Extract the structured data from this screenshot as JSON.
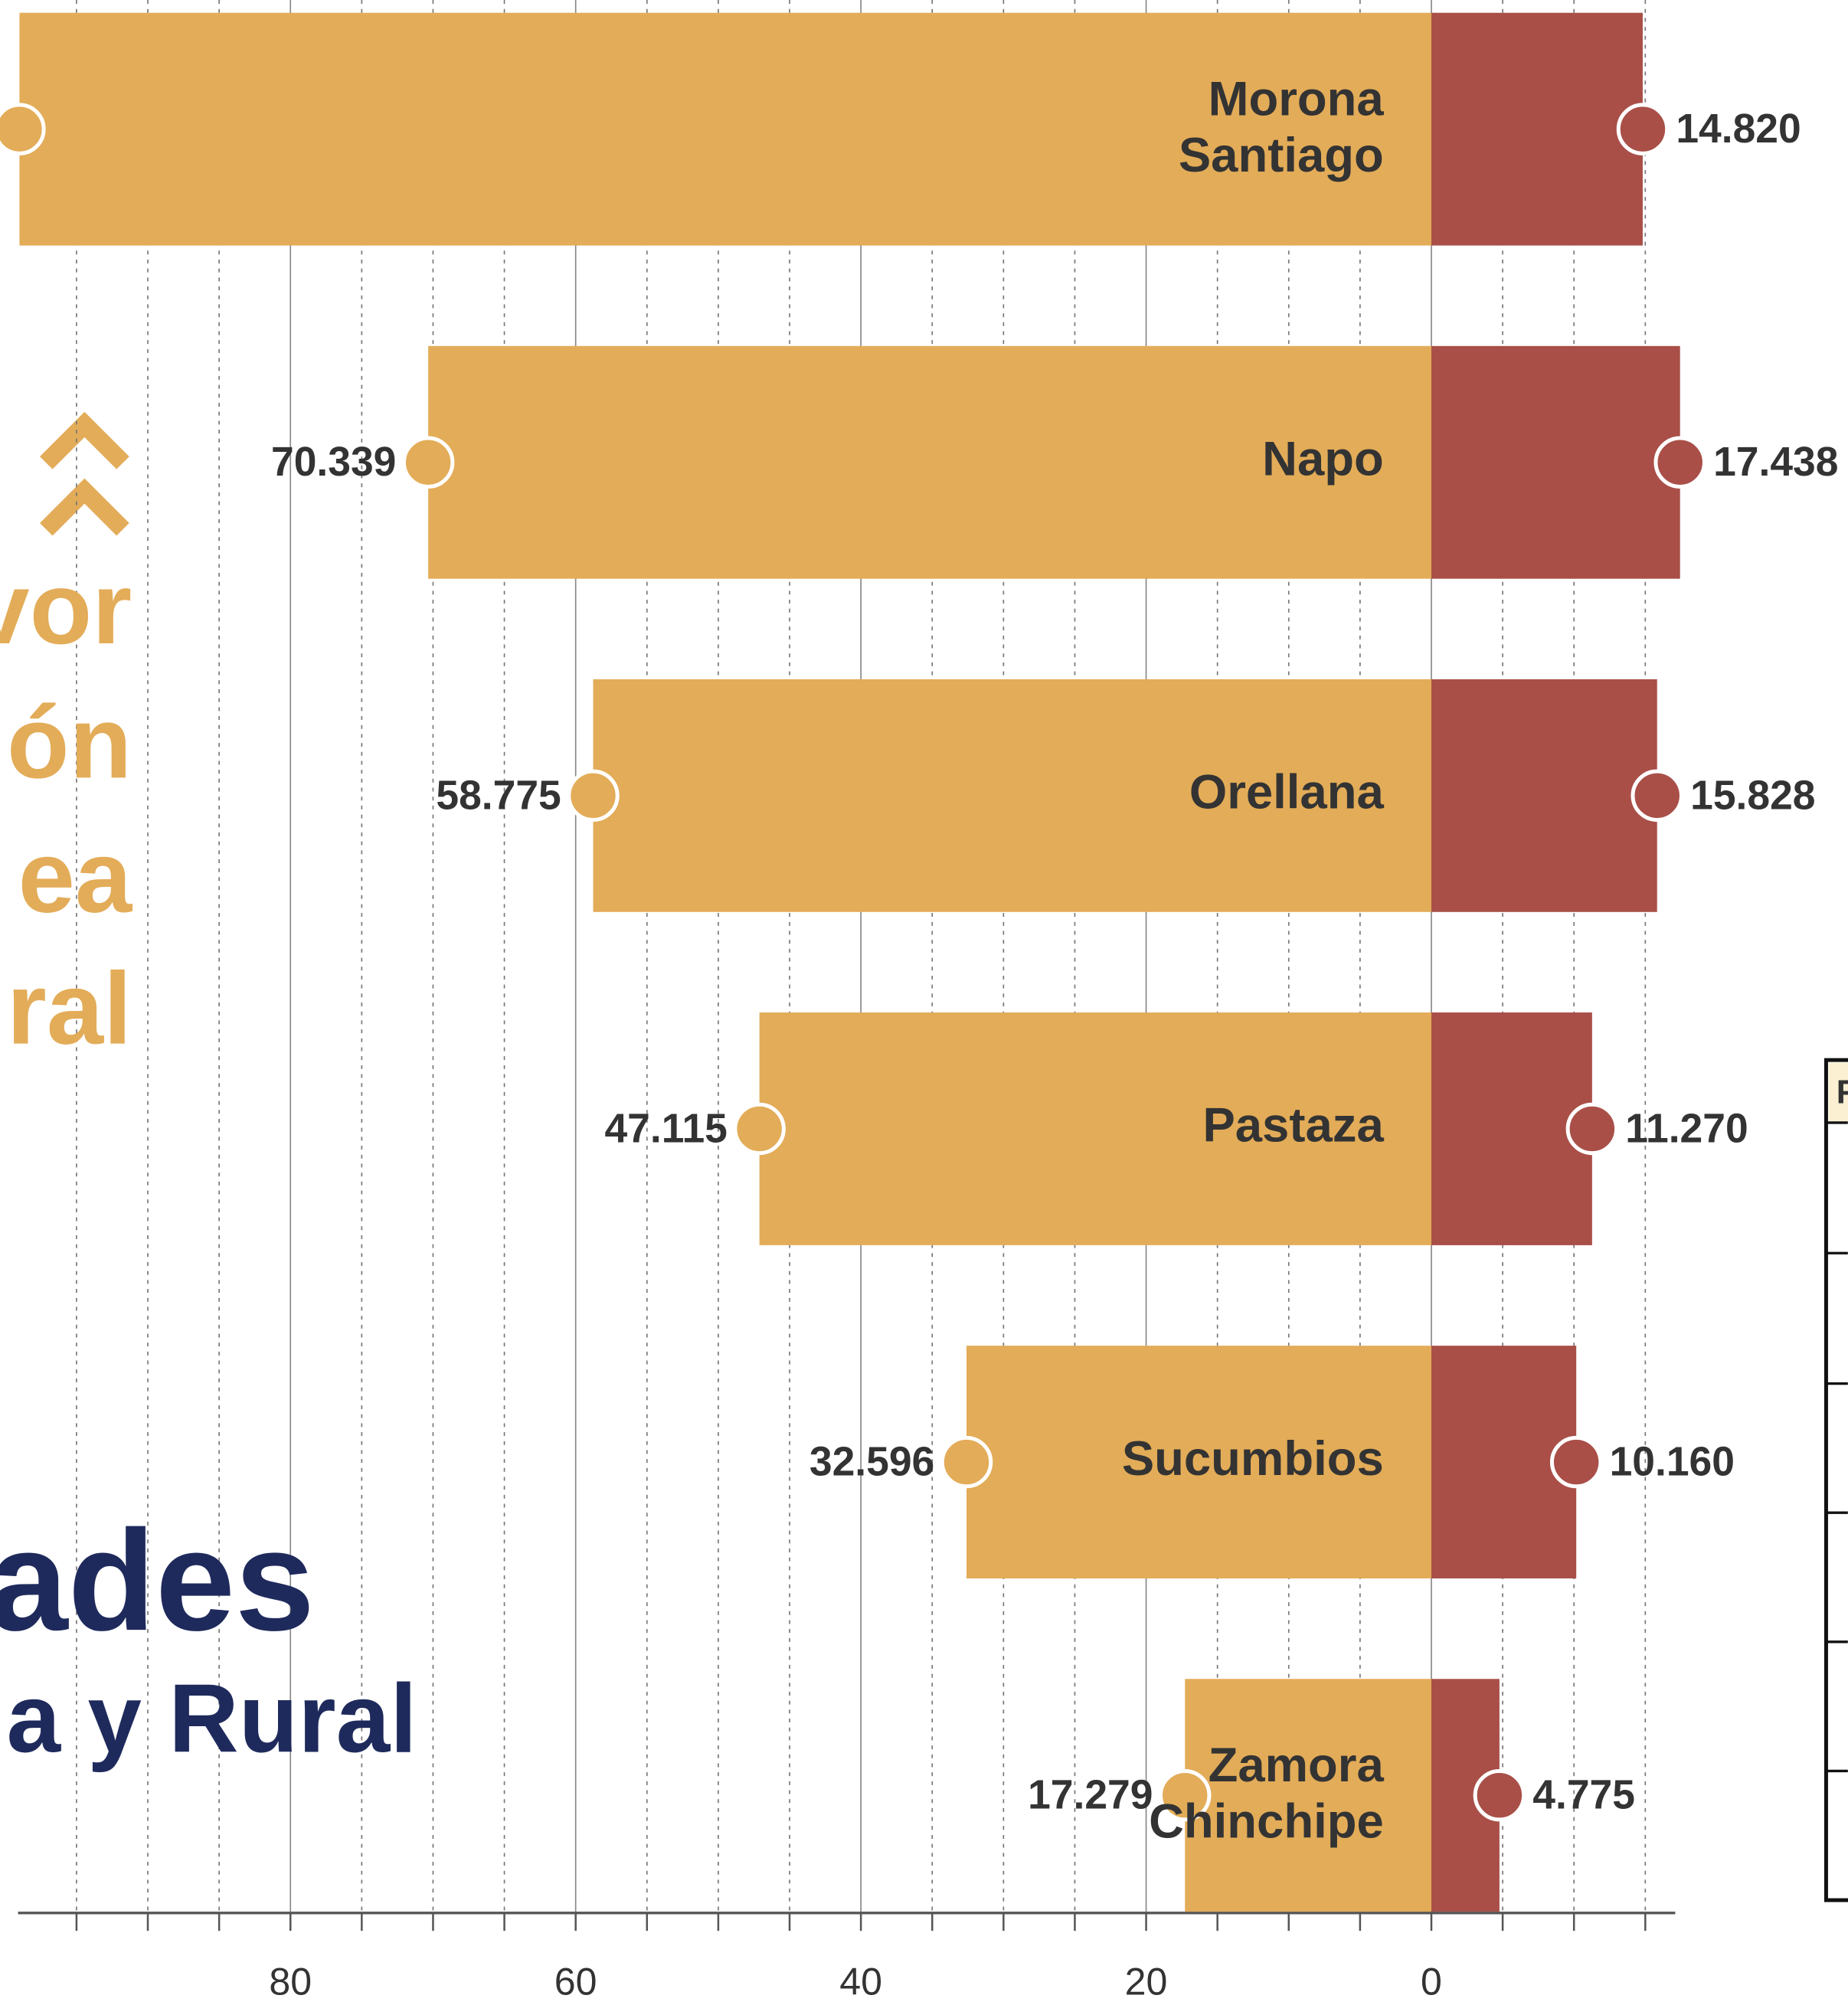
{
  "chart_data": {
    "type": "diverging_bar",
    "categories": [
      "Morona Santiago",
      "Napo",
      "Orellana",
      "Pastaza",
      "Sucumbios",
      "Zamora Chinchipe"
    ],
    "series": [
      {
        "color": "#e3ac58",
        "values": [
          99,
          70.339,
          58.775,
          47.115,
          32.596,
          17.279
        ],
        "value_labels": [
          null,
          "70.339",
          "58.775",
          "47.115",
          "32.596",
          "17.279"
        ]
      },
      {
        "color": "#a94f48",
        "values": [
          14.82,
          17.438,
          15.828,
          11.27,
          10.16,
          4.775
        ],
        "value_labels": [
          "14.820",
          "17.438",
          "15.828",
          "11.270",
          "10.160",
          "4.775"
        ]
      }
    ],
    "xlim": [
      99.1,
      -17.1
    ],
    "xticks": [
      80,
      60,
      40,
      20,
      0
    ],
    "xticks_minor": [
      95,
      90,
      85,
      75,
      70,
      65,
      55,
      50,
      45,
      35,
      30,
      25,
      15,
      10,
      5,
      -5,
      -10,
      -15
    ],
    "grid": true,
    "annotations": [
      "vor",
      "ón",
      "ea",
      "ral",
      "ades",
      "a y Rural",
      "F"
    ]
  }
}
